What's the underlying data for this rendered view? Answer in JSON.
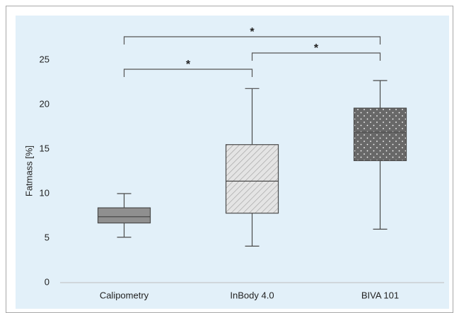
{
  "chart_data": {
    "type": "box",
    "ylabel": "Fatmass [%]",
    "categories": [
      "Calipometry",
      "InBody 4.0",
      "BIVA 101"
    ],
    "min": [
      5.1,
      4.1,
      6.0
    ],
    "q1": [
      6.7,
      7.8,
      13.7
    ],
    "median": [
      7.4,
      11.4,
      16.9
    ],
    "q3": [
      8.4,
      15.5,
      19.6
    ],
    "max": [
      10.0,
      21.8,
      22.7
    ],
    "colors": [
      "#8f8f8f",
      "#dcdcdc",
      "#686868"
    ],
    "patterns": [
      "solid",
      "hatch",
      "dots"
    ],
    "ylim": [
      0,
      25
    ],
    "yticks": [
      0,
      5,
      10,
      15,
      20,
      25
    ],
    "grid": false,
    "annotations": [
      "*",
      "*",
      "*"
    ]
  }
}
